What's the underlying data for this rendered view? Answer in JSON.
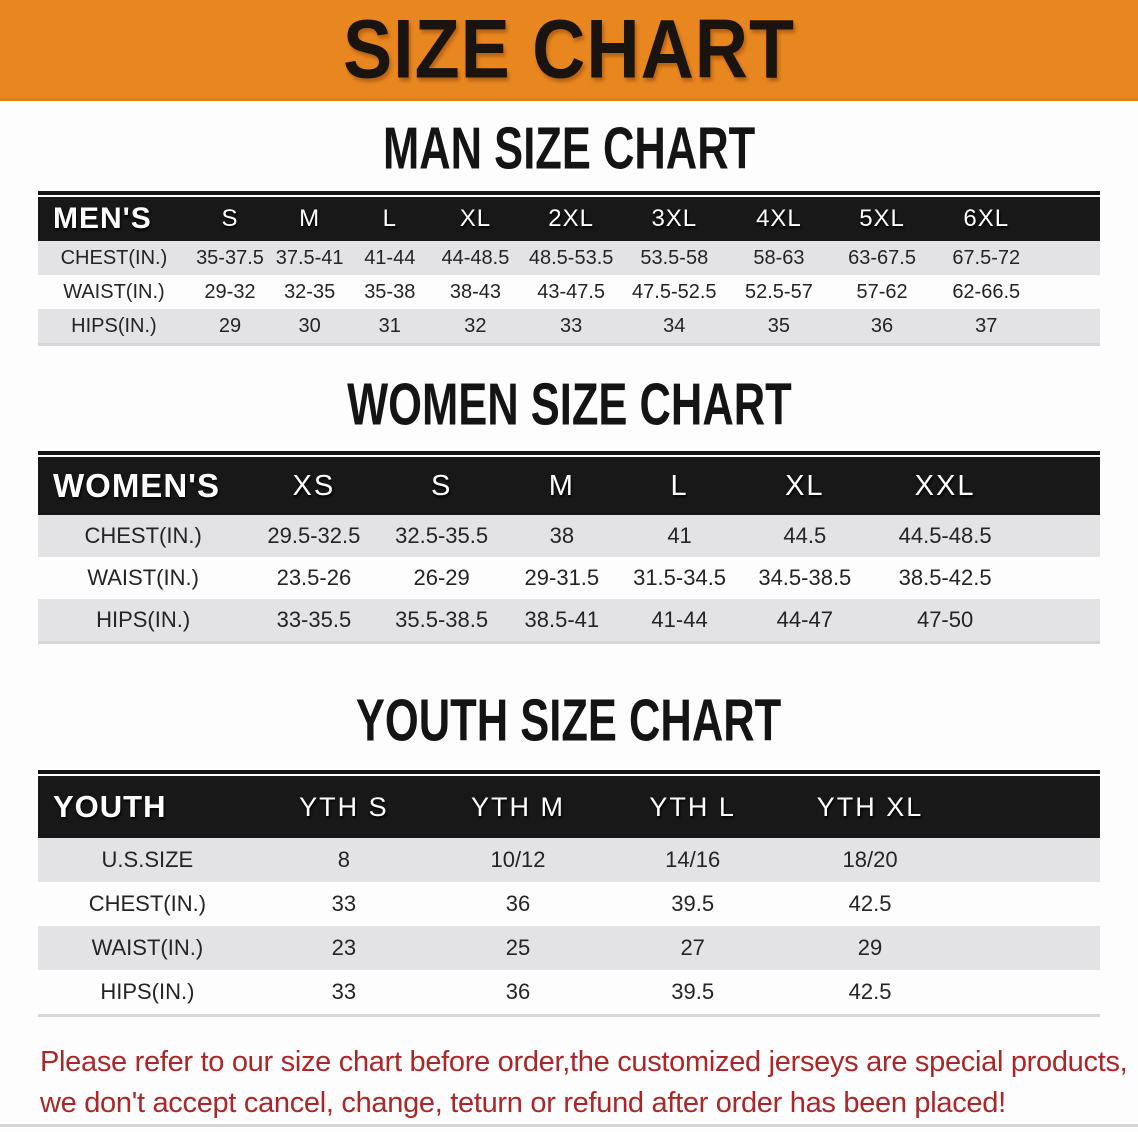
{
  "banner": {
    "title": "SIZE CHART"
  },
  "colors": {
    "banner_bg": "#e8861f",
    "table_header_bg": "#181818",
    "row_stripe_gray": "#e3e3e5",
    "footnote_red": "#ac2628"
  },
  "sections": [
    {
      "heading": "MAN SIZE CHART",
      "table": {
        "header_label": "MEN'S",
        "columns": [
          "S",
          "M",
          "L",
          "XL",
          "2XL",
          "3XL",
          "4XL",
          "5XL",
          "6XL"
        ],
        "rows": [
          {
            "label": "CHEST(IN.)",
            "values": [
              "35-37.5",
              "37.5-41",
              "41-44",
              "44-48.5",
              "48.5-53.5",
              "53.5-58",
              "58-63",
              "63-67.5",
              "67.5-72"
            ]
          },
          {
            "label": "WAIST(IN.)",
            "values": [
              "29-32",
              "32-35",
              "35-38",
              "38-43",
              "43-47.5",
              "47.5-52.5",
              "52.5-57",
              "57-62",
              "62-66.5"
            ]
          },
          {
            "label": "HIPS(IN.)",
            "values": [
              "29",
              "30",
              "31",
              "32",
              "33",
              "34",
              "35",
              "36",
              "37"
            ]
          }
        ]
      }
    },
    {
      "heading": "WOMEN SIZE CHART",
      "table": {
        "header_label": "WOMEN'S",
        "columns": [
          "XS",
          "S",
          "M",
          "L",
          "XL",
          "XXL"
        ],
        "rows": [
          {
            "label": "CHEST(IN.)",
            "values": [
              "29.5-32.5",
              "32.5-35.5",
              "38",
              "41",
              "44.5",
              "44.5-48.5"
            ]
          },
          {
            "label": "WAIST(IN.)",
            "values": [
              "23.5-26",
              "26-29",
              "29-31.5",
              "31.5-34.5",
              "34.5-38.5",
              "38.5-42.5"
            ]
          },
          {
            "label": "HIPS(IN.)",
            "values": [
              "33-35.5",
              "35.5-38.5",
              "38.5-41",
              "41-44",
              "44-47",
              "47-50"
            ]
          }
        ]
      }
    },
    {
      "heading": "YOUTH SIZE CHART",
      "table": {
        "header_label": "YOUTH",
        "columns": [
          "YTH S",
          "YTH M",
          "YTH L",
          "YTH XL"
        ],
        "rows": [
          {
            "label": "U.S.SIZE",
            "values": [
              "8",
              "10/12",
              "14/16",
              "18/20"
            ]
          },
          {
            "label": "CHEST(IN.)",
            "values": [
              "33",
              "36",
              "39.5",
              "42.5"
            ]
          },
          {
            "label": "WAIST(IN.)",
            "values": [
              "23",
              "25",
              "27",
              "29"
            ]
          },
          {
            "label": "HIPS(IN.)",
            "values": [
              "33",
              "36",
              "39.5",
              "42.5"
            ]
          }
        ]
      }
    }
  ],
  "footnote": {
    "line1": "Please refer to our size chart before order,the customized jerseys are special products,",
    "line2": "we don't accept cancel, change, teturn or refund after order has been placed!"
  }
}
